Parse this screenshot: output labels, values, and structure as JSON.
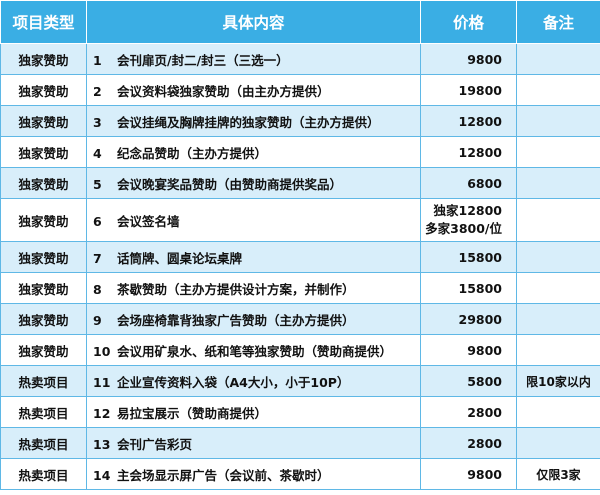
{
  "headers": {
    "type": "项目类型",
    "content": "具体内容",
    "price": "价格",
    "note": "备注"
  },
  "rows": [
    {
      "type": "独家赞助",
      "num": "1",
      "content": "会刊扉页/封二/封三（三选一）",
      "price": "9800",
      "note": ""
    },
    {
      "type": "独家赞助",
      "num": "2",
      "content": "会议资料袋独家赞助（由主办方提供）",
      "price": "19800",
      "note": ""
    },
    {
      "type": "独家赞助",
      "num": "3",
      "content": "会议挂绳及胸牌挂牌的独家赞助（主办方提供）",
      "price": "12800",
      "note": ""
    },
    {
      "type": "独家赞助",
      "num": "4",
      "content": "纪念品赞助（主办方提供）",
      "price": "12800",
      "note": ""
    },
    {
      "type": "独家赞助",
      "num": "5",
      "content": "会议晚宴奖品赞助（由赞助商提供奖品）",
      "price": "6800",
      "note": ""
    },
    {
      "type": "独家赞助",
      "num": "6",
      "content": "会议签名墙",
      "price": "独家12800",
      "price2": "多家3800/位",
      "note": ""
    },
    {
      "type": "独家赞助",
      "num": "7",
      "content": "话筒牌、圆桌论坛桌牌",
      "price": "15800",
      "note": ""
    },
    {
      "type": "独家赞助",
      "num": "8",
      "content": "茶歇赞助（主办方提供设计方案，并制作）",
      "price": "15800",
      "note": ""
    },
    {
      "type": "独家赞助",
      "num": "9",
      "content": "会场座椅靠背独家广告赞助（主办方提供）",
      "price": "29800",
      "note": ""
    },
    {
      "type": "独家赞助",
      "num": "10",
      "content": "会议用矿泉水、纸和笔等独家赞助（赞助商提供）",
      "price": "9800",
      "note": ""
    },
    {
      "type": "热卖项目",
      "num": "11",
      "content": "企业宣传资料入袋（A4大小，小于10P）",
      "price": "5800",
      "note": "限10家以内"
    },
    {
      "type": "热卖项目",
      "num": "12",
      "content": "易拉宝展示（赞助商提供）",
      "price": "2800",
      "note": ""
    },
    {
      "type": "热卖项目",
      "num": "13",
      "content": "会刊广告彩页",
      "price": "2800",
      "note": ""
    },
    {
      "type": "热卖项目",
      "num": "14",
      "content": "主会场显示屏广告（会议前、茶歇时）",
      "price": "9800",
      "note": "仅限3家"
    }
  ]
}
